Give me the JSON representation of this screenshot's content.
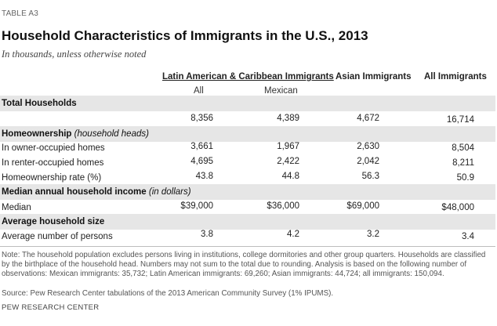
{
  "table_label": "TABLE A3",
  "title": "Household Characteristics of Immigrants in the U.S., 2013",
  "subtitle": "In thousands, unless otherwise noted",
  "columns": {
    "group_latin": "Latin American & Caribbean Immigrants",
    "asian": "Asian Immigrants",
    "all_immigrants": "All Immigrants",
    "sub_all": "All",
    "sub_mexican": "Mexican"
  },
  "sections": {
    "total_households": {
      "title": "Total Households",
      "values": [
        "8,356",
        "4,389",
        "4,672",
        "16,714"
      ]
    },
    "homeownership": {
      "title": "Homeownership",
      "note": "(household heads)",
      "rows": [
        {
          "label": "In owner-occupied homes",
          "values": [
            "3,661",
            "1,967",
            "2,630",
            "8,504"
          ]
        },
        {
          "label": "In renter-occupied homes",
          "values": [
            "4,695",
            "2,422",
            "2,042",
            "8,211"
          ]
        },
        {
          "label": "Homeownership rate (%)",
          "values": [
            "43.8",
            "44.8",
            "56.3",
            "50.9"
          ]
        }
      ]
    },
    "income": {
      "title": "Median annual household income",
      "note": "(in dollars)",
      "rows": [
        {
          "label": "Median",
          "values": [
            "$39,000",
            "$36,000",
            "$69,000",
            "$48,000"
          ]
        }
      ]
    },
    "household_size": {
      "title": "Average household size",
      "rows": [
        {
          "label": "Average number of persons",
          "values": [
            "3.8",
            "4.2",
            "3.2",
            "3.4"
          ]
        }
      ]
    }
  },
  "footnote": "Note: The household population excludes persons living in institutions, college dormitories and other group quarters. Households are classified by the birthplace of the household head. Numbers may not sum to the total due to rounding. Analysis is based on the following number of observations: Mexican immigrants: 35,732; Latin American immigrants: 69,260; Asian immigrants: 44,724; all immigrants: 150,094.",
  "source": "Source: Pew Research Center tabulations of the 2013 American Community Survey (1% IPUMS).",
  "brand": "PEW RESEARCH CENTER"
}
